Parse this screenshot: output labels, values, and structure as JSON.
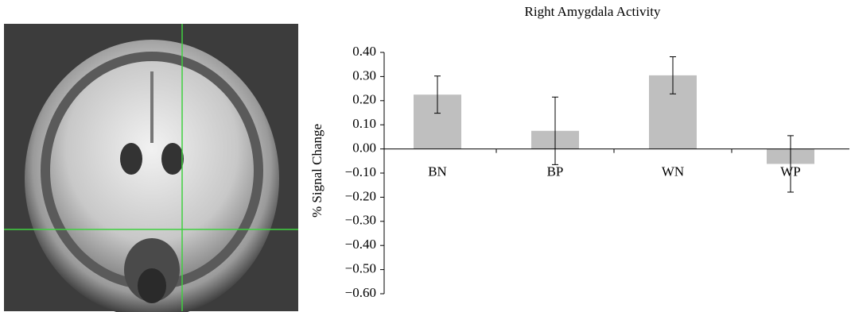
{
  "chart_data": {
    "type": "bar",
    "title": "Right Amygdala Activity",
    "ylabel": "% Signal Change",
    "categories": [
      "BN",
      "BP",
      "WN",
      "WP"
    ],
    "values": [
      0.225,
      0.075,
      0.305,
      -0.062
    ],
    "errors": [
      0.077,
      0.14,
      0.077,
      0.117
    ],
    "color": "#bfbfbf",
    "ylim": [
      -0.6,
      0.4
    ],
    "yticks": [
      {
        "value": 0.4,
        "label": "0.40"
      },
      {
        "value": 0.3,
        "label": "0.30"
      },
      {
        "value": 0.2,
        "label": "0.20"
      },
      {
        "value": 0.1,
        "label": "0.10"
      },
      {
        "value": 0,
        "label": "0.00"
      },
      {
        "value": -0.1,
        "label": "−0.10"
      },
      {
        "value": -0.2,
        "label": "−0.20"
      },
      {
        "value": -0.3,
        "label": "−0.30"
      },
      {
        "value": -0.4,
        "label": "−0.40"
      },
      {
        "value": -0.5,
        "label": "−0.50"
      },
      {
        "value": -0.6,
        "label": "−0.60"
      }
    ],
    "grid": false
  }
}
